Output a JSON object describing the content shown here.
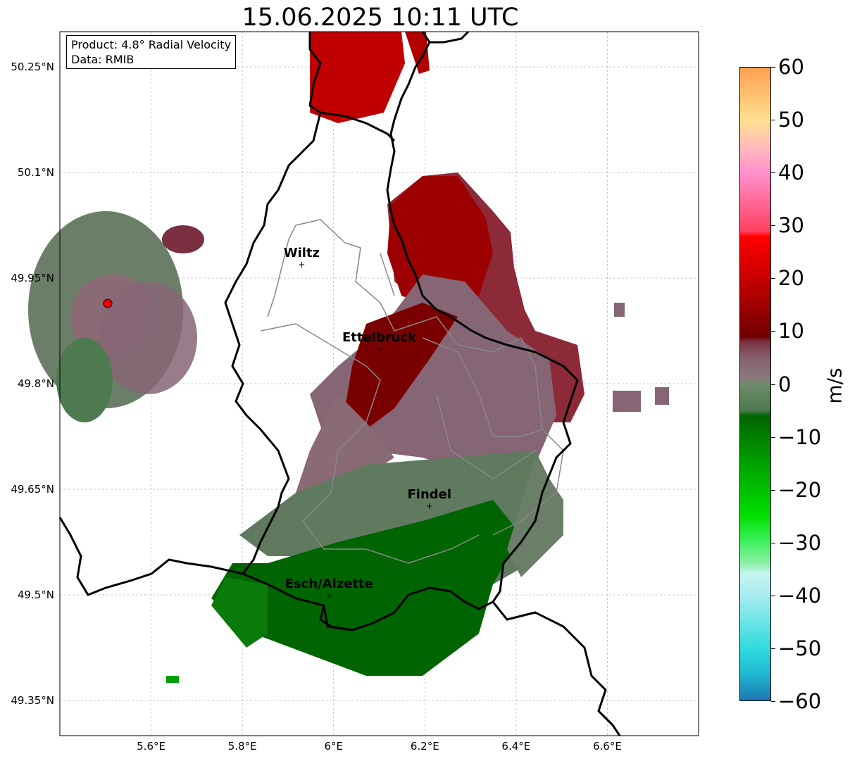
{
  "title": "15.06.2025 10:11 UTC",
  "info": {
    "product": "Product: 4.8° Radial Velocity",
    "data": "Data: RMIB"
  },
  "axes": {
    "lat_ticks": [
      "50.25°N",
      "50.1°N",
      "49.95°N",
      "49.8°N",
      "49.65°N",
      "49.5°N",
      "49.35°N"
    ],
    "lon_ticks": [
      "5.6°E",
      "5.8°E",
      "6°E",
      "6.2°E",
      "6.4°E",
      "6.6°E"
    ],
    "lat_range": [
      49.3,
      50.3
    ],
    "lon_range": [
      5.4,
      6.8
    ],
    "grid": true
  },
  "cities": [
    {
      "name": "Wiltz",
      "lon": 5.93,
      "lat": 49.97
    },
    {
      "name": "Ettelbruck",
      "lon": 6.1,
      "lat": 49.85
    },
    {
      "name": "Findel",
      "lon": 6.21,
      "lat": 49.627
    },
    {
      "name": "Esch/Alzette",
      "lon": 5.99,
      "lat": 49.5
    }
  ],
  "radar_site": {
    "lon": 5.505,
    "lat": 49.914,
    "color": "#e60000"
  },
  "colorbar": {
    "label": "m/s",
    "min": -60,
    "max": 60,
    "ticks": [
      "60",
      "50",
      "40",
      "30",
      "20",
      "10",
      "0",
      "−10",
      "−20",
      "−30",
      "−40",
      "−50",
      "−60"
    ],
    "stops": [
      {
        "v": -60,
        "c": "#1f77b4"
      },
      {
        "v": -55,
        "c": "#1fb8d0"
      },
      {
        "v": -50,
        "c": "#30dcdc"
      },
      {
        "v": -40,
        "c": "#a8ecf0"
      },
      {
        "v": -36,
        "c": "#c8f4f4"
      },
      {
        "v": -34,
        "c": "#8cf0a8"
      },
      {
        "v": -30,
        "c": "#40f060"
      },
      {
        "v": -25,
        "c": "#00e000"
      },
      {
        "v": -15,
        "c": "#00a000"
      },
      {
        "v": -6,
        "c": "#006400"
      },
      {
        "v": -5,
        "c": "#4e7a50"
      },
      {
        "v": 0,
        "c": "#6d8a6a"
      },
      {
        "v": 1,
        "c": "#8a7a7c"
      },
      {
        "v": 5,
        "c": "#866070"
      },
      {
        "v": 8,
        "c": "#7a3040"
      },
      {
        "v": 9,
        "c": "#700000"
      },
      {
        "v": 20,
        "c": "#c80000"
      },
      {
        "v": 28,
        "c": "#ff0000"
      },
      {
        "v": 29,
        "c": "#ff4060"
      },
      {
        "v": 40,
        "c": "#ff90cc"
      },
      {
        "v": 45,
        "c": "#ffbcbc"
      },
      {
        "v": 50,
        "c": "#ffe090"
      },
      {
        "v": 60,
        "c": "#ffa050"
      }
    ]
  }
}
